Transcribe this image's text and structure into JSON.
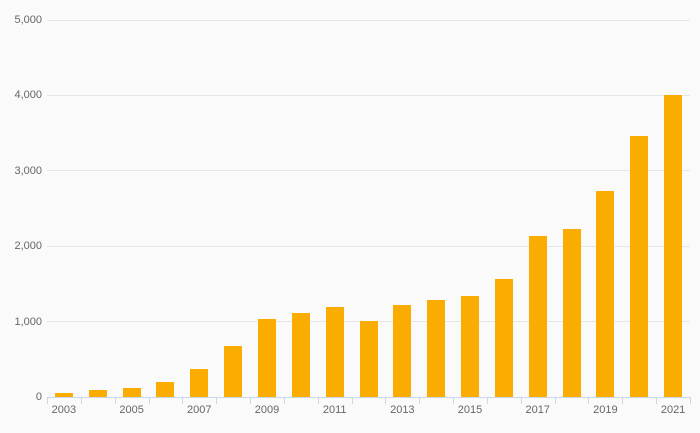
{
  "chart_data": {
    "type": "bar",
    "title": "",
    "xlabel": "",
    "ylabel": "",
    "categories": [
      "2003",
      "2004",
      "2005",
      "2006",
      "2007",
      "2008",
      "2009",
      "2010",
      "2011",
      "2012",
      "2013",
      "2014",
      "2015",
      "2016",
      "2017",
      "2018",
      "2019",
      "2020",
      "2021"
    ],
    "values": [
      55,
      90,
      120,
      195,
      375,
      675,
      1030,
      1120,
      1190,
      1010,
      1215,
      1290,
      1335,
      1560,
      2135,
      2230,
      2730,
      3460,
      4000
    ],
    "ylim": [
      0,
      5000
    ],
    "y_tick_interval": 1000,
    "y_tick_labels": [
      "0",
      "1,000",
      "2,000",
      "3,000",
      "4,000",
      "5,000"
    ],
    "x_tick_labels_visible": [
      "2003",
      "2005",
      "2007",
      "2009",
      "2011",
      "2013",
      "2015",
      "2017",
      "2019",
      "2021"
    ],
    "grid": "horizontal-on",
    "legend": "none",
    "colors": {
      "bar": "#faad00",
      "gridline": "#e6e6e6",
      "axis_line": "#ccd6eb",
      "label_text": "#666666",
      "background": "#fafafa"
    }
  }
}
